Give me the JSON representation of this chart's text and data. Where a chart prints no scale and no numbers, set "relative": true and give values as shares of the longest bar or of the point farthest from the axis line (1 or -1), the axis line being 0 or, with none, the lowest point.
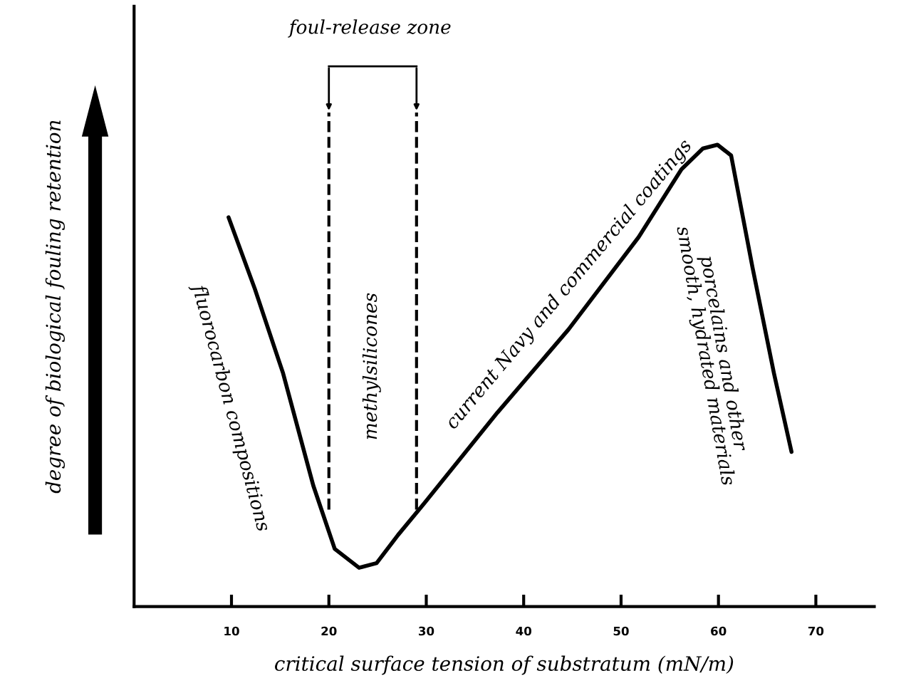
{
  "chart_data": {
    "type": "line",
    "relative": true,
    "color": "#000000",
    "x": [
      9.7,
      12.4,
      15.3,
      18.4,
      20.6,
      23.1,
      24.9,
      27.1,
      29.8,
      37.3,
      44.6,
      51.8,
      56.2,
      58.4,
      59.9,
      61.3,
      63.5,
      65.7,
      67.5
    ],
    "values": [
      0.843,
      0.688,
      0.505,
      0.262,
      0.125,
      0.084,
      0.094,
      0.155,
      0.224,
      0.42,
      0.6,
      0.8,
      0.947,
      0.992,
      1.0,
      0.977,
      0.734,
      0.505,
      0.335
    ],
    "xlim": [
      0,
      76
    ],
    "xticks": [
      10,
      20,
      30,
      40,
      50,
      60,
      70
    ],
    "xlabel": "critical surface tension of substratum (mN/m)",
    "ylabel": "degree of biological fouling retention",
    "ref_lines": [
      {
        "axis": "x",
        "value": 20,
        "line_style": "dashed"
      },
      {
        "axis": "x",
        "value": 29,
        "line_style": "dashed"
      }
    ],
    "annotations": [
      "fluorocarbon compositions",
      "methylsilicones",
      "current Navy and commercial coatings",
      "porcelains and other\nsmooth, hydrated materials",
      "foul-release zone"
    ],
    "line_style": "solid",
    "marker": "none"
  }
}
